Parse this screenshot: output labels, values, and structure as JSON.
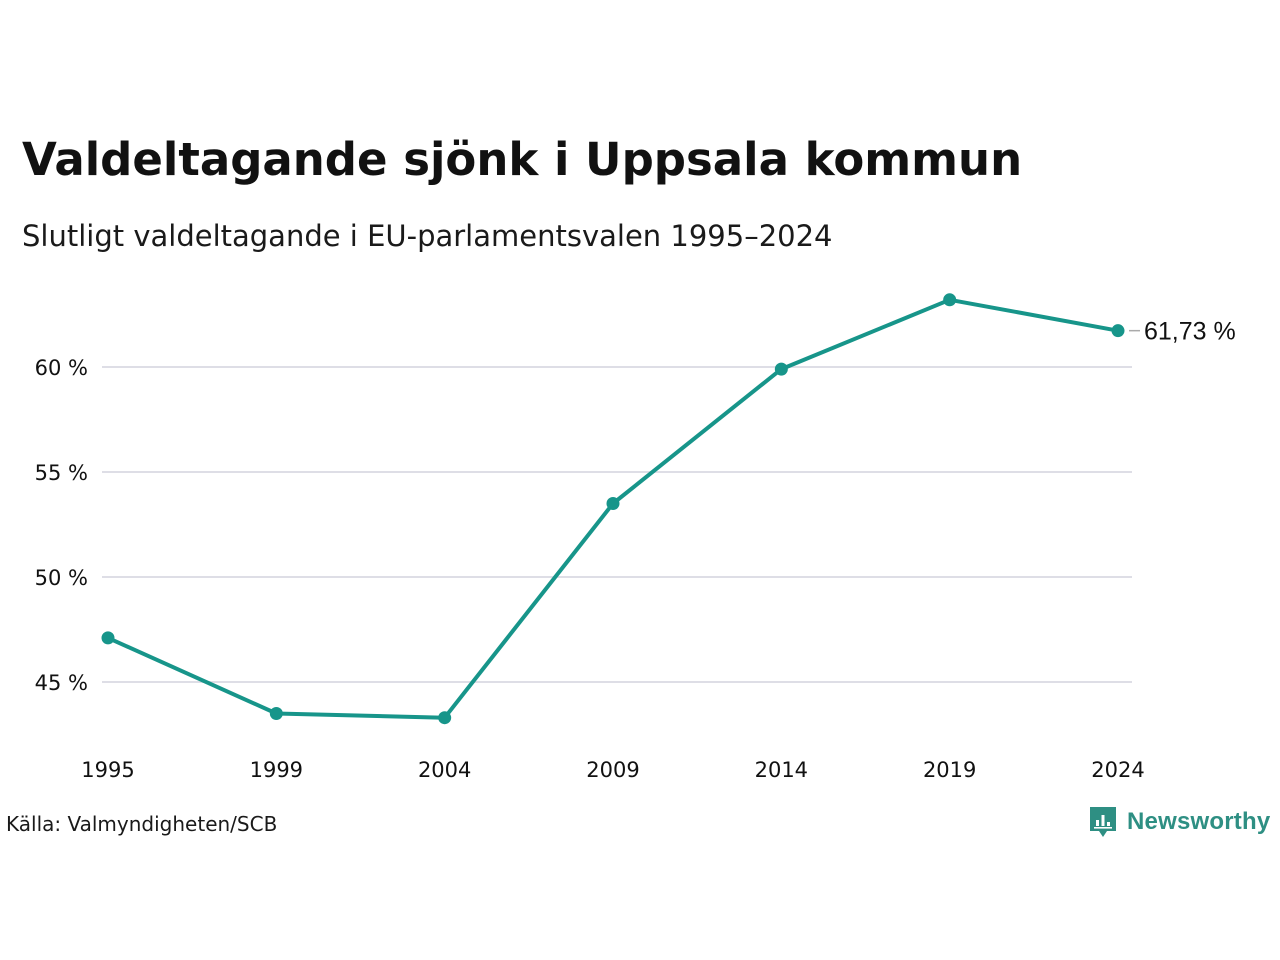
{
  "colors": {
    "line": "#17958a",
    "grid": "#dedee6",
    "text": "#111111",
    "brand": "#2e8f83"
  },
  "chart_data": {
    "type": "line",
    "title": "Valdeltagande sjönk i Uppsala kommun",
    "subtitle": "Slutligt valdeltagande i EU-parlamentsvalen 1995–2024",
    "xlabel": "",
    "ylabel": "",
    "x": [
      "1995",
      "1999",
      "2004",
      "2009",
      "2014",
      "2019",
      "2024"
    ],
    "series": [
      {
        "values": [
          47.1,
          43.5,
          43.3,
          53.5,
          59.9,
          63.2,
          61.73
        ]
      }
    ],
    "yticks": [
      {
        "value": 45,
        "label": "45 %"
      },
      {
        "value": 50,
        "label": "50 %"
      },
      {
        "value": 55,
        "label": "55 %"
      },
      {
        "value": 60,
        "label": "60 %"
      }
    ],
    "ylim": [
      42,
      64.5
    ],
    "grid": true,
    "end_label": "61,73 %",
    "source": "Källa: Valmyndigheten/SCB"
  },
  "brand": {
    "name": "Newsworthy",
    "icon": "newsworthy-logo-icon"
  }
}
